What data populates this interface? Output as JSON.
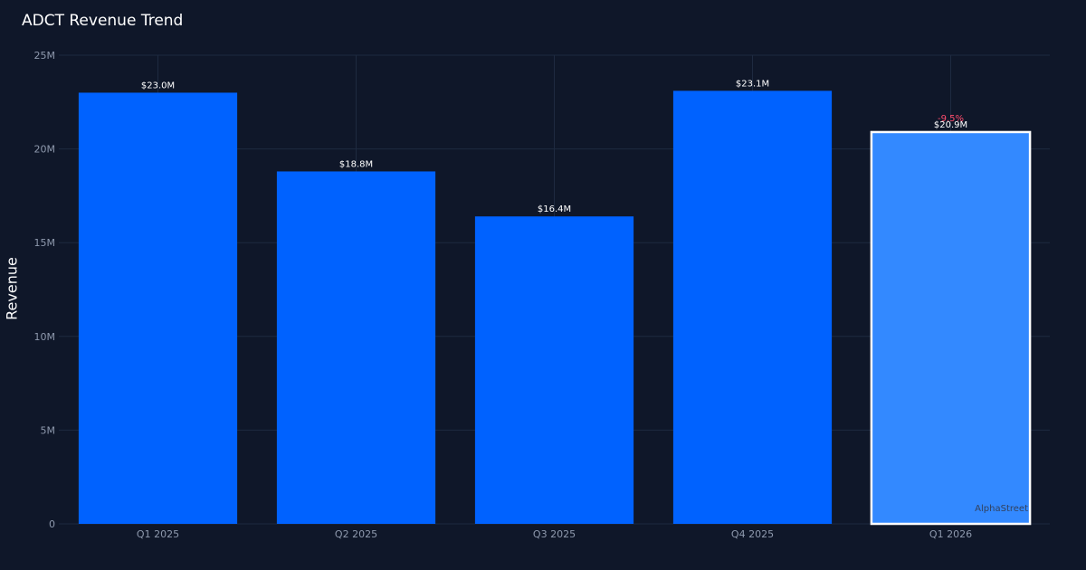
{
  "chart_data": {
    "type": "bar",
    "title": "ADCT Revenue Trend",
    "xlabel": "",
    "ylabel": "Revenue",
    "ylim": [
      0,
      25
    ],
    "unit": "M",
    "yticks": [
      "0",
      "5M",
      "10M",
      "15M",
      "20M",
      "25M"
    ],
    "categories": [
      "Q1 2025",
      "Q2 2025",
      "Q3 2025",
      "Q4 2025",
      "Q1 2026"
    ],
    "values": [
      23.0,
      18.8,
      16.4,
      23.1,
      20.9
    ],
    "data_labels": [
      "$23.0M",
      "$18.8M",
      "$16.4M",
      "$23.1M",
      "$20.9M"
    ],
    "highlight_index": 4,
    "change_label": "-9.5%",
    "grid": true,
    "colors": {
      "bar": "#0062ff",
      "highlight_bar": "#3389ff",
      "highlight_border": "#ffffff",
      "change_negative": "#ff4d6d",
      "background": "#0f1729",
      "grid": "#1e2a40"
    }
  },
  "watermark": "AlphaStreet"
}
